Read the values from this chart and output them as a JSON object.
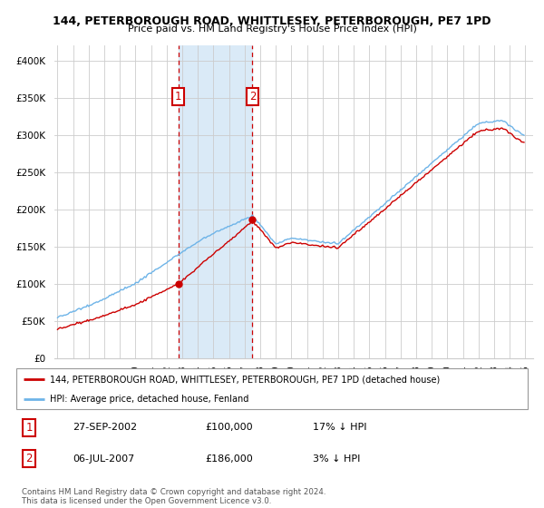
{
  "title": "144, PETERBOROUGH ROAD, WHITTLESEY, PETERBOROUGH, PE7 1PD",
  "subtitle": "Price paid vs. HM Land Registry's House Price Index (HPI)",
  "legend_line1": "144, PETERBOROUGH ROAD, WHITTLESEY, PETERBOROUGH, PE7 1PD (detached house)",
  "legend_line2": "HPI: Average price, detached house, Fenland",
  "transaction1_date": "27-SEP-2002",
  "transaction1_price": "£100,000",
  "transaction1_hpi": "17% ↓ HPI",
  "transaction2_date": "06-JUL-2007",
  "transaction2_price": "£186,000",
  "transaction2_hpi": "3% ↓ HPI",
  "footer": "Contains HM Land Registry data © Crown copyright and database right 2024.\nThis data is licensed under the Open Government Licence v3.0.",
  "hpi_color": "#6eb4e8",
  "price_color": "#cc0000",
  "highlight_color": "#daeaf7",
  "transaction_box_color": "#cc0000",
  "ylim": [
    0,
    420000
  ],
  "yticks": [
    0,
    50000,
    100000,
    150000,
    200000,
    250000,
    300000,
    350000,
    400000
  ],
  "transaction1_year": 2002.75,
  "transaction2_year": 2007.5,
  "prop_price_t1": 100000,
  "prop_price_t2": 186000
}
